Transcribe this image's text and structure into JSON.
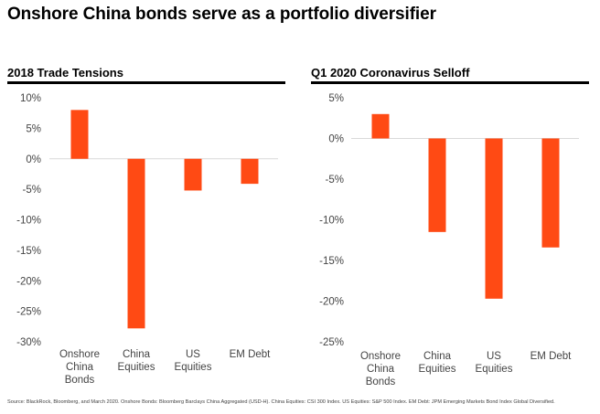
{
  "title": "Onshore China bonds serve as a portfolio diversifier",
  "source": "Source: BlackRock, Bloomberg, and March 2020. Onshore Bonds: Bloomberg Barclays China Aggregated (USD-H). China Equities: CSI 300 Index. US Equities: S&P 500 Index. EM Debt: JPM Emerging Markets Bond Index Global Diversified.",
  "colors": {
    "bar": "#ff4a14",
    "gridline": "#d9d9d9",
    "rule": "#000000"
  },
  "chart_data": [
    {
      "type": "bar",
      "title": "2018 Trade Tensions",
      "categories": [
        [
          "Onshore",
          "China",
          "Bonds"
        ],
        [
          "China",
          "Equities"
        ],
        [
          "US",
          "Equities"
        ],
        [
          "EM Debt"
        ]
      ],
      "values": [
        8,
        -27.8,
        -5.2,
        -4.1
      ],
      "ylim": [
        -30,
        10
      ],
      "yticks": [
        10,
        5,
        0,
        -5,
        -10,
        -15,
        -20,
        -25,
        -30
      ],
      "ytick_labels": [
        "10%",
        "5%",
        "0%",
        "-5%",
        "-10%",
        "-15%",
        "-20%",
        "-25%",
        "-30%"
      ],
      "xlabel": "",
      "ylabel": ""
    },
    {
      "type": "bar",
      "title": "Q1 2020 Coronavirus Selloff",
      "categories": [
        [
          "Onshore",
          "China",
          "Bonds"
        ],
        [
          "China",
          "Equities"
        ],
        [
          "US",
          "Equities"
        ],
        [
          "EM Debt"
        ]
      ],
      "values": [
        3,
        -11.5,
        -19.7,
        -13.4
      ],
      "ylim": [
        -25,
        5
      ],
      "yticks": [
        5,
        0,
        -5,
        -10,
        -15,
        -20,
        -25
      ],
      "ytick_labels": [
        "5%",
        "0%",
        "-5%",
        "-10%",
        "-15%",
        "-20%",
        "-25%"
      ],
      "xlabel": "",
      "ylabel": ""
    }
  ]
}
